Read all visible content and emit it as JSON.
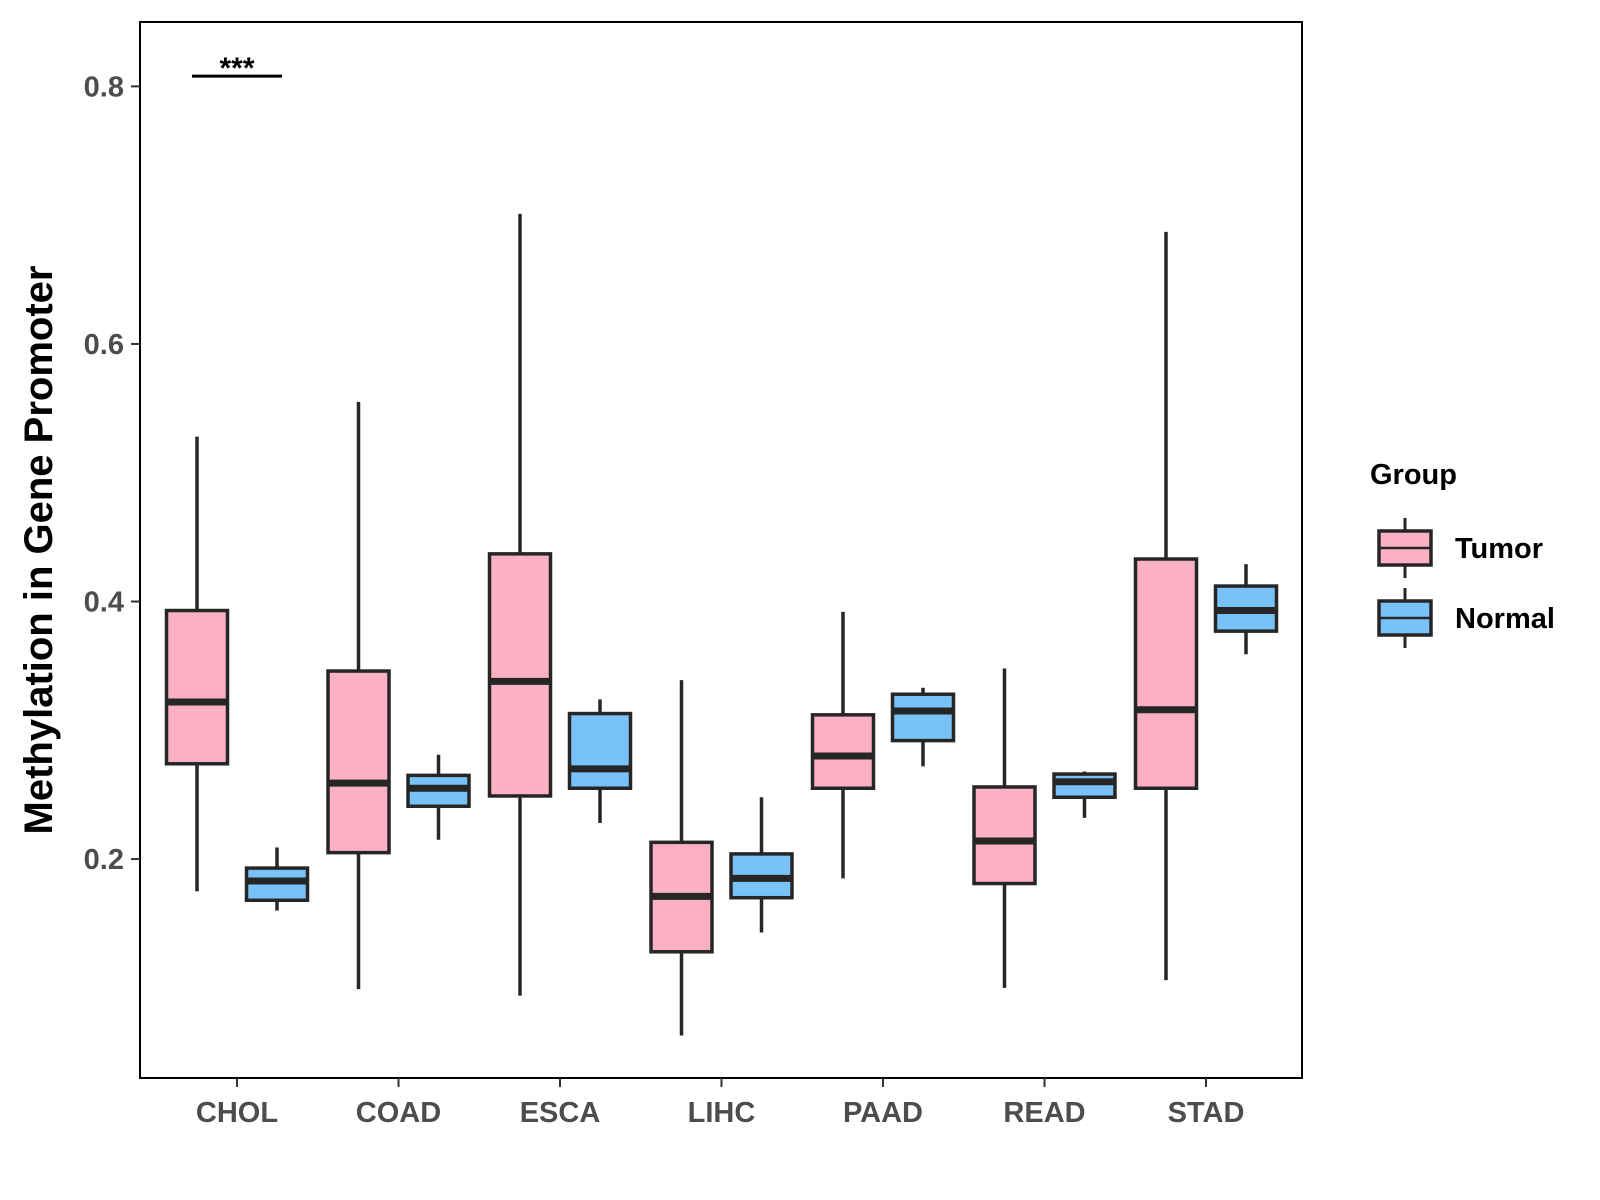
{
  "chart_data": {
    "type": "boxplot",
    "title": "",
    "xlabel": "",
    "ylabel": "Methylation in Gene Promoter",
    "ylim": [
      0.03,
      0.85
    ],
    "yticks": [
      0.2,
      0.4,
      0.6,
      0.8
    ],
    "ytick_labels": [
      "0.2",
      "0.4",
      "0.6",
      "0.8"
    ],
    "grid": false,
    "categories": [
      "CHOL",
      "COAD",
      "ESCA",
      "LIHC",
      "PAAD",
      "READ",
      "STAD"
    ],
    "series": [
      {
        "name": "Tumor",
        "color": "#fbb0c3",
        "boxes": [
          {
            "min": 0.175,
            "q1": 0.274,
            "median": 0.322,
            "q3": 0.393,
            "max": 0.528
          },
          {
            "min": 0.099,
            "q1": 0.205,
            "median": 0.259,
            "q3": 0.346,
            "max": 0.555
          },
          {
            "min": 0.094,
            "q1": 0.249,
            "median": 0.338,
            "q3": 0.437,
            "max": 0.701
          },
          {
            "min": 0.063,
            "q1": 0.128,
            "median": 0.171,
            "q3": 0.213,
            "max": 0.339
          },
          {
            "min": 0.185,
            "q1": 0.255,
            "median": 0.28,
            "q3": 0.312,
            "max": 0.392
          },
          {
            "min": 0.1,
            "q1": 0.181,
            "median": 0.214,
            "q3": 0.256,
            "max": 0.348
          },
          {
            "min": 0.106,
            "q1": 0.255,
            "median": 0.316,
            "q3": 0.433,
            "max": 0.687
          }
        ]
      },
      {
        "name": "Normal",
        "color": "#78c2f8",
        "boxes": [
          {
            "min": 0.16,
            "q1": 0.168,
            "median": 0.183,
            "q3": 0.193,
            "max": 0.209
          },
          {
            "min": 0.215,
            "q1": 0.241,
            "median": 0.255,
            "q3": 0.265,
            "max": 0.281
          },
          {
            "min": 0.228,
            "q1": 0.255,
            "median": 0.27,
            "q3": 0.313,
            "max": 0.324
          },
          {
            "min": 0.143,
            "q1": 0.17,
            "median": 0.185,
            "q3": 0.204,
            "max": 0.248
          },
          {
            "min": 0.272,
            "q1": 0.292,
            "median": 0.315,
            "q3": 0.328,
            "max": 0.333
          },
          {
            "min": 0.232,
            "q1": 0.248,
            "median": 0.26,
            "q3": 0.266,
            "max": 0.268
          },
          {
            "min": 0.359,
            "q1": 0.377,
            "median": 0.393,
            "q3": 0.412,
            "max": 0.429
          }
        ]
      }
    ],
    "legend": {
      "title": "Group",
      "position": "right",
      "items": [
        "Tumor",
        "Normal"
      ]
    },
    "annotations": [
      {
        "text": "***",
        "category": "CHOL",
        "y": 0.808
      }
    ]
  }
}
